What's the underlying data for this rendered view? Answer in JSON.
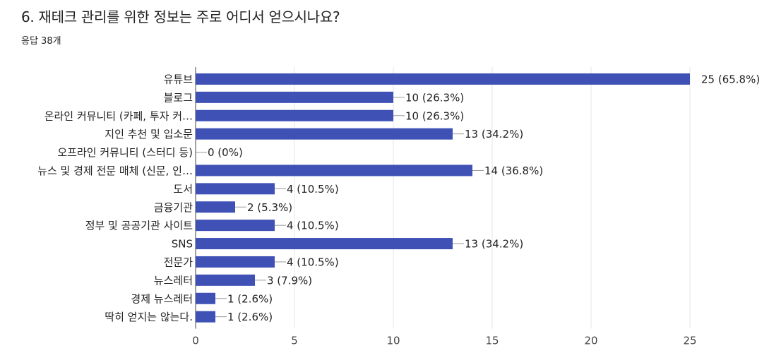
{
  "question": {
    "title": "6. 재테크 관리를 위한 정보는 주로 어디서 얻으시나요?",
    "response_count": "응답 38개"
  },
  "colors": {
    "bar": "#3f51b5",
    "grid": "#e6e6e6",
    "leader": "#999999"
  },
  "chart_data": {
    "type": "bar",
    "orientation": "horizontal",
    "categories": [
      "유튜브",
      "블로그",
      "온라인 커뮤니티 (카페, 투자 커…",
      "지인 추천 및 입소문",
      "오프라인 커뮤니티 (스터디 등)",
      "뉴스 및 경제 전문 매체 (신문, 인…",
      "도서",
      "금융기관",
      "정부 및 공공기관 사이트",
      "SNS",
      "전문가",
      "뉴스레터",
      "경제 뉴스레터",
      "딱히 얻지는 않는다."
    ],
    "values": [
      25,
      10,
      10,
      13,
      0,
      14,
      4,
      2,
      4,
      13,
      4,
      3,
      1,
      1
    ],
    "value_labels": [
      "25 (65.8%)",
      "10 (26.3%)",
      "10 (26.3%)",
      "13 (34.2%)",
      "0 (0%)",
      "14 (36.8%)",
      "4 (10.5%)",
      "2 (5.3%)",
      "4 (10.5%)",
      "13 (34.2%)",
      "4 (10.5%)",
      "3 (7.9%)",
      "1 (2.6%)",
      "1 (2.6%)"
    ],
    "x_ticks": [
      "0",
      "5",
      "10",
      "15",
      "20",
      "25"
    ],
    "xlim": [
      0,
      25
    ],
    "grid": true,
    "legend": "none"
  }
}
